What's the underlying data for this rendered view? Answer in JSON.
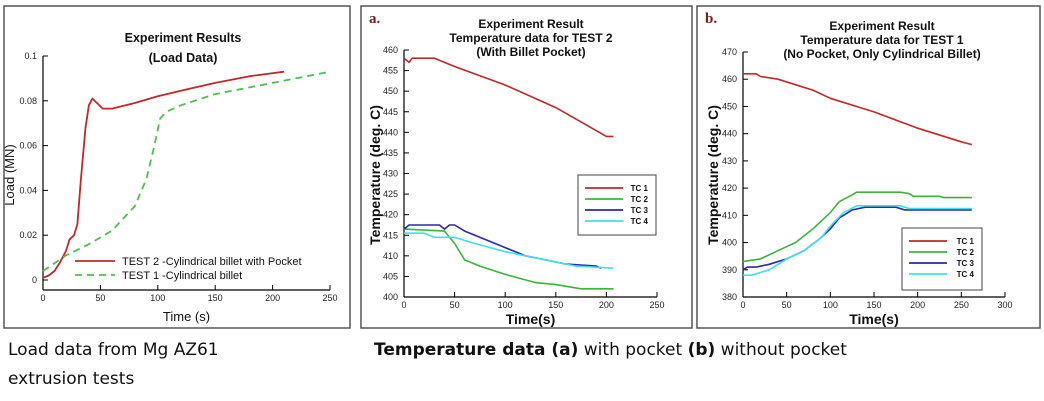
{
  "captions": {
    "load_line1": "Load data from Mg AZ61",
    "load_line2": "extrusion tests",
    "temp_parts": [
      {
        "text": "Temperature data (a)",
        "bold": true
      },
      {
        "text": " with pocket ",
        "bold": false
      },
      {
        "text": "(b)",
        "bold": true
      },
      {
        "text": " without pocket",
        "bold": false
      }
    ]
  },
  "chart_data": [
    {
      "type": "line",
      "panel_label": "",
      "title": [
        "Experiment Results",
        "(Load Data)"
      ],
      "xlabel": "Time (s)",
      "ylabel": "Load (MN)",
      "xlim": [
        0,
        250
      ],
      "ylim": [
        0,
        0.1
      ],
      "xticks": [
        0,
        50,
        100,
        150,
        200,
        250
      ],
      "yticks": [
        0,
        0.02,
        0.04,
        0.06,
        0.08,
        0.1
      ],
      "grid": false,
      "legend_position": "bottom-right",
      "series": [
        {
          "name": "TEST 2 -Cylindrical billet with Pocket",
          "color": "#c0282a",
          "dash": false,
          "x": [
            0,
            5,
            10,
            15,
            20,
            23,
            27,
            30,
            33,
            37,
            40,
            43,
            47,
            52,
            60,
            80,
            100,
            120,
            150,
            180,
            210
          ],
          "y": [
            0.001,
            0.002,
            0.004,
            0.008,
            0.013,
            0.018,
            0.02,
            0.025,
            0.045,
            0.068,
            0.078,
            0.081,
            0.079,
            0.0765,
            0.0765,
            0.079,
            0.082,
            0.0845,
            0.088,
            0.091,
            0.093
          ]
        },
        {
          "name": "TEST 1 -Cylindrical billet",
          "color": "#4cbf4c",
          "dash": true,
          "x": [
            0,
            20,
            40,
            60,
            80,
            90,
            97,
            102,
            107,
            120,
            150,
            200,
            250
          ],
          "y": [
            0.004,
            0.011,
            0.016,
            0.022,
            0.033,
            0.045,
            0.06,
            0.072,
            0.075,
            0.078,
            0.083,
            0.088,
            0.093
          ]
        }
      ]
    },
    {
      "type": "line",
      "panel_label": "a.",
      "title": [
        "Experiment Result",
        "Temperature data for TEST 2",
        "(With Billet Pocket)"
      ],
      "xlabel": "Time(s)",
      "ylabel": "Temperature (deg. C)",
      "xlim": [
        0,
        250
      ],
      "ylim": [
        400,
        460
      ],
      "xticks": [
        0,
        50,
        100,
        150,
        200,
        250
      ],
      "yticks": [
        400,
        405,
        410,
        415,
        420,
        425,
        430,
        435,
        440,
        445,
        450,
        455,
        460
      ],
      "grid": false,
      "legend_position": "center-right",
      "series": [
        {
          "name": "TC 1",
          "color": "#c0282a",
          "x": [
            0,
            5,
            8,
            30,
            40,
            50,
            100,
            150,
            200,
            207
          ],
          "y": [
            458,
            457,
            458,
            458,
            457,
            456,
            451.5,
            446,
            439,
            439
          ]
        },
        {
          "name": "TC 2",
          "color": "#3cb43c",
          "x": [
            0,
            40,
            50,
            60,
            75,
            100,
            130,
            150,
            175,
            207
          ],
          "y": [
            416.5,
            416,
            413,
            409,
            407.5,
            405.5,
            403.5,
            403,
            402,
            402
          ]
        },
        {
          "name": "TC 3",
          "color": "#2a2aaa",
          "x": [
            0,
            5,
            35,
            40,
            45,
            50,
            60,
            80,
            100,
            120,
            140,
            160,
            190,
            195
          ],
          "y": [
            416.5,
            417.5,
            417.5,
            416.5,
            417.5,
            417.5,
            416,
            414,
            412,
            410,
            409,
            408,
            407.5,
            407
          ]
        },
        {
          "name": "TC 4",
          "color": "#3fe0ec",
          "x": [
            0,
            20,
            30,
            50,
            70,
            100,
            120,
            150,
            170,
            207
          ],
          "y": [
            415.5,
            415.5,
            414.5,
            414.5,
            413,
            411,
            410,
            408.5,
            407.5,
            407
          ]
        }
      ]
    },
    {
      "type": "line",
      "panel_label": "b.",
      "title": [
        "Experiment Result",
        "Temperature data for TEST 1",
        "(No Pocket, Only Cylindrical Billet)"
      ],
      "xlabel": "Time(s)",
      "ylabel": "Temperature (deg. C)",
      "xlim": [
        0,
        300
      ],
      "ylim": [
        380,
        470
      ],
      "xticks": [
        0,
        50,
        100,
        150,
        200,
        250,
        300
      ],
      "yticks": [
        380,
        390,
        400,
        410,
        420,
        430,
        440,
        450,
        460,
        470
      ],
      "grid": false,
      "legend_position": "bottom-right",
      "series": [
        {
          "name": "TC 1",
          "color": "#c0282a",
          "x": [
            0,
            15,
            20,
            40,
            60,
            80,
            100,
            150,
            200,
            250,
            262
          ],
          "y": [
            462,
            462,
            461,
            460,
            458,
            456,
            453,
            448,
            442,
            437,
            436
          ]
        },
        {
          "name": "TC 2",
          "color": "#3cb43c",
          "x": [
            0,
            20,
            40,
            60,
            80,
            100,
            110,
            125,
            130,
            180,
            190,
            195,
            225,
            230,
            262
          ],
          "y": [
            393,
            394,
            397,
            400,
            405,
            411,
            415,
            417.5,
            418.5,
            418.5,
            418,
            417,
            417,
            416.5,
            416.5
          ]
        },
        {
          "name": "TC 3",
          "color": "#2a2aaa",
          "x": [
            0,
            5,
            15,
            30,
            50,
            70,
            90,
            100,
            110,
            125,
            140,
            175,
            185,
            262
          ],
          "y": [
            390,
            391,
            391,
            392,
            394,
            397,
            402,
            405,
            409,
            412,
            413,
            413,
            412,
            412
          ]
        },
        {
          "name": "TC 4",
          "color": "#3fe0ec",
          "x": [
            0,
            10,
            30,
            50,
            70,
            90,
            100,
            115,
            130,
            180,
            190,
            262
          ],
          "y": [
            388,
            388,
            390,
            394,
            397,
            402,
            406,
            411,
            413.5,
            413.5,
            412.5,
            412.5
          ]
        }
      ]
    }
  ]
}
